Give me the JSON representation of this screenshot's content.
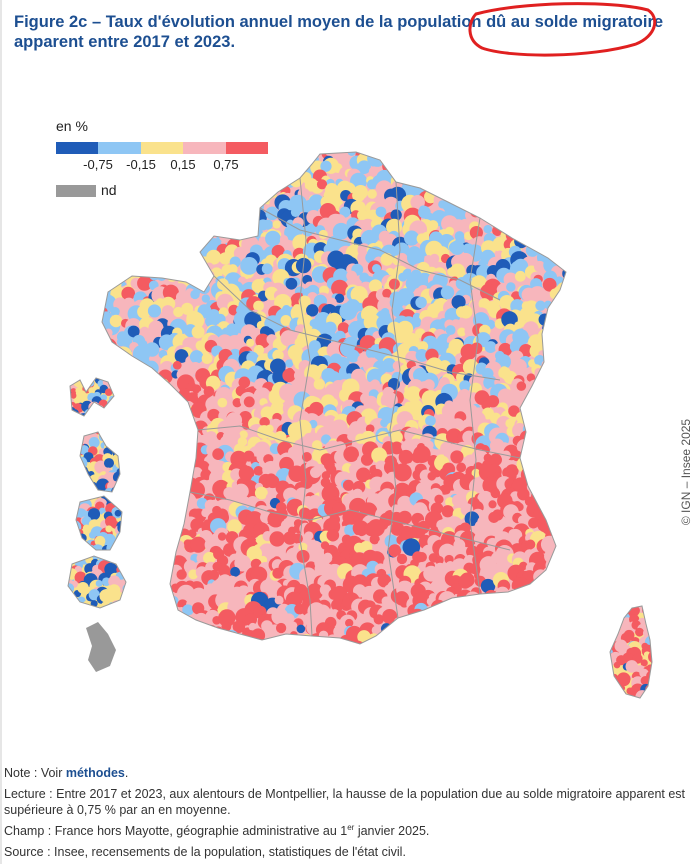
{
  "figure": {
    "title": "Figure 2c – Taux d'évolution annuel moyen de la population dû au solde migratoire apparent entre 2017 et 2023."
  },
  "legend": {
    "unit": "en %",
    "classes": [
      {
        "color": "#1f5cb8",
        "meaning": "below -0,75"
      },
      {
        "color": "#8ec6f4",
        "meaning": "-0,75 to -0,15"
      },
      {
        "color": "#fae28c",
        "meaning": "-0,15 to 0,15"
      },
      {
        "color": "#f7b6bc",
        "meaning": "0,15 to 0,75"
      },
      {
        "color": "#f45b61",
        "meaning": "above 0,75"
      }
    ],
    "ticks": [
      "-0,75",
      "-0,15",
      "0,15",
      "0,75"
    ],
    "nd_color": "#999999",
    "nd_label": "nd"
  },
  "map": {
    "territories": [
      "France métropolitaine",
      "Corse",
      "Guadeloupe",
      "Martinique",
      "Guyane",
      "La Réunion",
      "Mayotte (nd)"
    ],
    "border_color": "#9a9a9a",
    "annotation_color": "#e02020"
  },
  "credit": "© IGN – Insee 2025",
  "notes": {
    "note_prefix": "Note : Voir ",
    "note_link": "méthodes",
    "note_suffix": ".",
    "lecture": "Lecture : Entre 2017 et 2023, aux alentours de Montpellier, la hausse de la population due au solde migratoire apparent est supérieure à 0,75 % par an en moyenne.",
    "champ_prefix": "Champ : France hors Mayotte, géographie administrative au 1",
    "champ_sup": "er",
    "champ_suffix": " janvier 2025.",
    "source": "Source : Insee, recensements de la population, statistiques de l'état civil."
  }
}
